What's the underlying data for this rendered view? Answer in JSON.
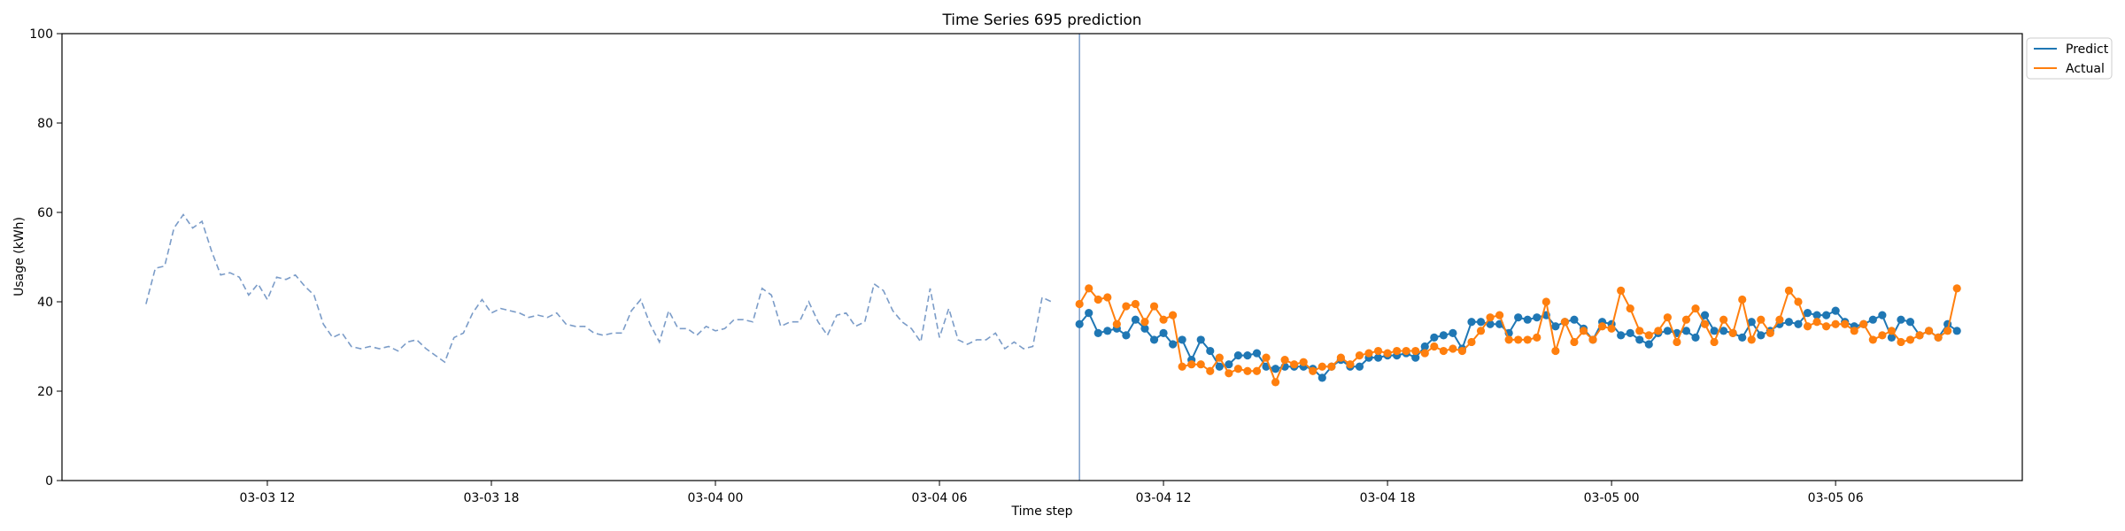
{
  "chart_data": {
    "type": "line",
    "title": "Time Series 695 prediction",
    "xlabel": "Time step",
    "ylabel": "Usage (kWh)",
    "ylim": [
      0,
      100
    ],
    "yticks": [
      0,
      20,
      40,
      60,
      80,
      100
    ],
    "xlim": [
      "2024-03-03 06:30",
      "2024-03-05 11:00"
    ],
    "xticks": [
      {
        "t": "2024-03-03 12:00",
        "label": "03-03 12"
      },
      {
        "t": "2024-03-03 18:00",
        "label": "03-03 18"
      },
      {
        "t": "2024-03-04 00:00",
        "label": "03-04 00"
      },
      {
        "t": "2024-03-04 06:00",
        "label": "03-04 06"
      },
      {
        "t": "2024-03-04 12:00",
        "label": "03-04 12"
      },
      {
        "t": "2024-03-04 18:00",
        "label": "03-04 18"
      },
      {
        "t": "2024-03-05 00:00",
        "label": "03-05 00"
      },
      {
        "t": "2024-03-05 06:00",
        "label": "03-05 06"
      }
    ],
    "forecast_start": "2024-03-04 09:45",
    "grid": false,
    "legend_position": "outside top-right",
    "series": [
      {
        "style": "dashed",
        "color": "#7b9cc8",
        "start": "2024-03-03 08:45",
        "step_minutes": 15,
        "values": [
          39.5,
          47.5,
          48,
          56.5,
          59.5,
          56.5,
          58,
          51.5,
          46,
          46.5,
          45.5,
          41.5,
          44,
          40.5,
          45.5,
          45,
          46,
          43.5,
          41.5,
          35,
          32,
          33,
          30,
          29.5,
          30,
          29.5,
          30,
          29,
          31,
          31.5,
          29.5,
          28,
          26.5,
          32,
          33,
          37.5,
          40.5,
          37.5,
          38.5,
          38,
          37.5,
          36.5,
          37,
          36.5,
          37.5,
          35,
          34.5,
          34.5,
          33,
          32.5,
          33,
          33,
          38,
          40.5,
          35,
          31,
          38,
          34,
          34,
          32.5,
          34.5,
          33.5,
          34,
          36,
          36,
          35.5,
          43,
          41.5,
          34.5,
          35.5,
          35.5,
          40,
          35.5,
          32.5,
          37,
          37.5,
          34.5,
          35.5,
          44,
          42.5,
          38,
          35.5,
          34,
          31,
          43,
          32,
          38.5,
          31.5,
          30.5,
          31.5,
          31.5,
          33,
          29.5,
          31,
          29.5,
          30,
          41,
          40
        ]
      },
      {
        "name": "Predict",
        "color": "#1f77b4",
        "start": "2024-03-04 09:45",
        "step_minutes": 15,
        "values": [
          35,
          37.5,
          33,
          33.5,
          34,
          32.5,
          36,
          34,
          31.5,
          33,
          30.5,
          31.5,
          27,
          31.5,
          29,
          25.5,
          26,
          28,
          28,
          28.5,
          25.5,
          25,
          25.5,
          25.5,
          25.5,
          25,
          23,
          25.5,
          27,
          25.5,
          25.5,
          27.5,
          27.5,
          28,
          28,
          28.5,
          27.5,
          30,
          32,
          32.5,
          33,
          29.5,
          35.5,
          35.5,
          35,
          35,
          33,
          36.5,
          36,
          36.5,
          37,
          34.5,
          35.5,
          36,
          34,
          31.5,
          35.5,
          35,
          32.5,
          33,
          31.5,
          30.5,
          33,
          33.5,
          33,
          33.5,
          32,
          37,
          33.5,
          33.5,
          33,
          32,
          35.5,
          32.5,
          33.5,
          35,
          35.5,
          35,
          37.5,
          37,
          37,
          38,
          35.5,
          34.5,
          35,
          36,
          37,
          32,
          36,
          35.5,
          32.5,
          33.5,
          32,
          35,
          33.5
        ]
      },
      {
        "name": "Actual",
        "color": "#ff7f0e",
        "start": "2024-03-04 09:45",
        "step_minutes": 15,
        "values": [
          39.5,
          43,
          40.5,
          41,
          35,
          39,
          39.5,
          35.5,
          39,
          36,
          37,
          25.5,
          26,
          26,
          24.5,
          27.5,
          24,
          25,
          24.5,
          24.5,
          27.5,
          22,
          27,
          26,
          26.5,
          24.5,
          25.5,
          25.5,
          27.5,
          26,
          28,
          28.5,
          29,
          28.5,
          29,
          29,
          29,
          28.5,
          30,
          29,
          29.5,
          29,
          31,
          33.5,
          36.5,
          37,
          31.5,
          31.5,
          31.5,
          32,
          40,
          29,
          35.5,
          31,
          33.5,
          31.5,
          34.5,
          34,
          42.5,
          38.5,
          33.5,
          32.5,
          33.5,
          36.5,
          31,
          36,
          38.5,
          35,
          31,
          36,
          33,
          40.5,
          31.5,
          36,
          33,
          36,
          42.5,
          40,
          34.5,
          35.5,
          34.5,
          35,
          35,
          33.5,
          35,
          31.5,
          32.5,
          33.5,
          31,
          31.5,
          32.5,
          33.5,
          32,
          33.5,
          43
        ]
      }
    ]
  }
}
